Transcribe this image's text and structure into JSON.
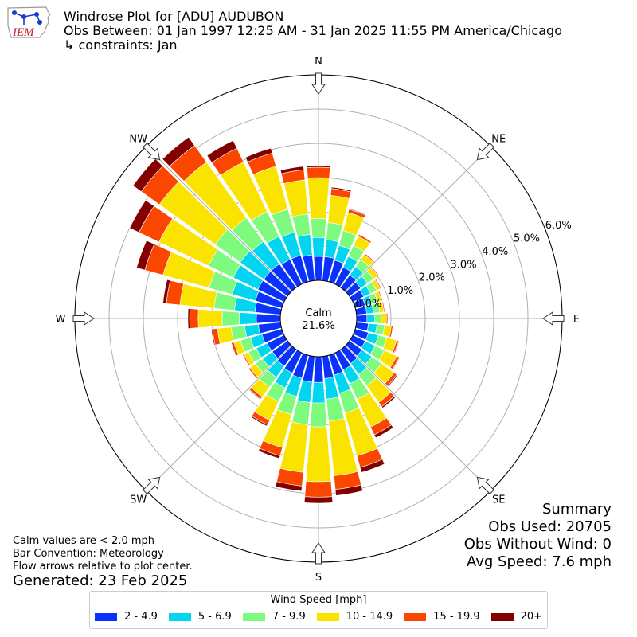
{
  "header": {
    "title": "Windrose Plot for [ADU] AUDUBON",
    "period": "Obs Between: 01 Jan 1997 12:25 AM - 31 Jan 2025 11:55 PM America/Chicago",
    "constraints": "↳ constraints: Jan"
  },
  "logo": {
    "text": "IEM",
    "icon": "iem-iowa-logo"
  },
  "footer": {
    "calm_note": "Calm values are < 2.0 mph",
    "bar_convention": "Bar Convention: Meteorology",
    "flow_note": "Flow arrows relative to plot center.",
    "generated": "Generated: 23 Feb 2025"
  },
  "summary": {
    "title": "Summary",
    "obs_used": "Obs Used: 20705",
    "obs_without_wind": "Obs Without Wind: 0",
    "avg_speed": "Avg Speed: 7.6 mph"
  },
  "legend": {
    "title": "Wind Speed [mph]",
    "placement": "bottom-center",
    "items": [
      {
        "label": "2 - 4.9",
        "color": "#0a32fa"
      },
      {
        "label": "5 - 6.9",
        "color": "#02d5f0"
      },
      {
        "label": "7 - 9.9",
        "color": "#7efa7e"
      },
      {
        "label": "10 - 14.9",
        "color": "#fbe300"
      },
      {
        "label": "15 - 19.9",
        "color": "#fb4600"
      },
      {
        "label": "20+",
        "color": "#820000"
      }
    ]
  },
  "chart_data": {
    "type": "windrose",
    "center_label": "Calm",
    "calm_value": "21.6%",
    "calm_percent": 21.6,
    "radial_ticks": [
      0,
      1,
      2,
      3,
      4,
      5,
      6
    ],
    "radial_tick_labels": [
      "0.0%",
      "1.0%",
      "2.0%",
      "3.0%",
      "4.0%",
      "5.0%",
      "6.0%"
    ],
    "rmax": 6.0,
    "grid": true,
    "cardinal_labels": [
      "N",
      "NE",
      "E",
      "SE",
      "S",
      "SW",
      "W",
      "NW"
    ],
    "directions": [
      "N",
      "NNE",
      "NE",
      "ENE",
      "E",
      "ESE",
      "SE",
      "SSE",
      "S",
      "SSW",
      "SW",
      "WSW",
      "W",
      "WNW",
      "NW",
      "NNW",
      "N2",
      "NNE2",
      "NE2",
      "ENE2",
      "E2",
      "ESE2",
      "SE2",
      "SSE2",
      "S2",
      "SSW2",
      "SW2",
      "WSW2",
      "W2",
      "WNW2",
      "NW2",
      "NNW2",
      "N3",
      "NNE3",
      "NE3",
      "ENE3"
    ],
    "direction_degrees": [
      0,
      10,
      20,
      30,
      40,
      50,
      60,
      70,
      80,
      90,
      100,
      110,
      120,
      130,
      140,
      150,
      160,
      170,
      180,
      190,
      200,
      210,
      220,
      230,
      240,
      250,
      260,
      270,
      280,
      290,
      300,
      310,
      320,
      330,
      340,
      350
    ],
    "series": [
      {
        "name": "2 - 4.9",
        "values": [
          0.7,
          0.7,
          0.65,
          0.55,
          0.45,
          0.4,
          0.35,
          0.3,
          0.3,
          0.3,
          0.35,
          0.4,
          0.4,
          0.45,
          0.5,
          0.55,
          0.6,
          0.65,
          0.75,
          0.75,
          0.7,
          0.65,
          0.6,
          0.55,
          0.55,
          0.6,
          0.65,
          0.7,
          0.75,
          0.8,
          0.85,
          0.85,
          0.85,
          0.8,
          0.8,
          0.75
        ]
      },
      {
        "name": "5 - 6.9",
        "values": [
          0.55,
          0.5,
          0.45,
          0.35,
          0.3,
          0.25,
          0.22,
          0.2,
          0.2,
          0.22,
          0.25,
          0.3,
          0.32,
          0.35,
          0.4,
          0.45,
          0.55,
          0.6,
          0.6,
          0.6,
          0.55,
          0.48,
          0.4,
          0.35,
          0.35,
          0.35,
          0.4,
          0.5,
          0.6,
          0.7,
          0.8,
          0.85,
          0.8,
          0.75,
          0.7,
          0.6
        ]
      },
      {
        "name": "7 - 9.9",
        "values": [
          0.55,
          0.5,
          0.45,
          0.35,
          0.25,
          0.22,
          0.2,
          0.18,
          0.18,
          0.2,
          0.22,
          0.25,
          0.3,
          0.35,
          0.4,
          0.5,
          0.6,
          0.65,
          0.7,
          0.65,
          0.55,
          0.45,
          0.35,
          0.25,
          0.25,
          0.3,
          0.4,
          0.5,
          0.6,
          0.7,
          0.8,
          0.9,
          0.85,
          0.8,
          0.7,
          0.6
        ]
      },
      {
        "name": "10 - 14.9",
        "values": [
          1.2,
          0.8,
          0.55,
          0.3,
          0.18,
          0.15,
          0.12,
          0.12,
          0.12,
          0.15,
          0.2,
          0.3,
          0.4,
          0.45,
          0.6,
          0.9,
          1.3,
          1.6,
          1.6,
          1.4,
          1.0,
          0.6,
          0.35,
          0.2,
          0.15,
          0.2,
          0.4,
          0.7,
          1.0,
          1.4,
          1.6,
          2.0,
          2.0,
          1.6,
          1.3,
          1.0
        ]
      },
      {
        "name": "15 - 19.9",
        "values": [
          0.3,
          0.2,
          0.1,
          0.06,
          0.04,
          0.03,
          0.03,
          0.03,
          0.03,
          0.04,
          0.05,
          0.06,
          0.08,
          0.1,
          0.15,
          0.25,
          0.35,
          0.4,
          0.45,
          0.4,
          0.25,
          0.15,
          0.08,
          0.05,
          0.04,
          0.08,
          0.15,
          0.25,
          0.4,
          0.55,
          0.65,
          0.65,
          0.6,
          0.45,
          0.4,
          0.3
        ]
      },
      {
        "name": "20+",
        "values": [
          0.06,
          0.04,
          0.02,
          0.01,
          0.01,
          0.0,
          0.0,
          0.0,
          0.0,
          0.01,
          0.01,
          0.02,
          0.02,
          0.03,
          0.05,
          0.1,
          0.15,
          0.18,
          0.18,
          0.15,
          0.08,
          0.04,
          0.02,
          0.01,
          0.0,
          0.01,
          0.03,
          0.05,
          0.1,
          0.25,
          0.3,
          0.3,
          0.3,
          0.25,
          0.15,
          0.1
        ]
      }
    ]
  }
}
